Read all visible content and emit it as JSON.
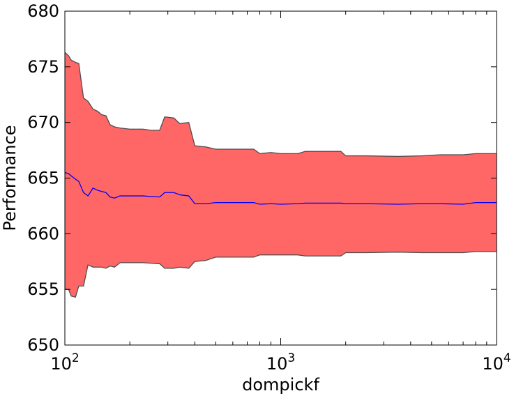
{
  "chart_data": {
    "type": "area",
    "title": "",
    "xlabel": "dompickf",
    "ylabel": "Performance",
    "x_scale": "log",
    "xlim": [
      100,
      10000
    ],
    "ylim": [
      650,
      680
    ],
    "grid": false,
    "legend": "none",
    "x_ticks": [
      {
        "value": 100,
        "base": "10",
        "exp": "2"
      },
      {
        "value": 1000,
        "base": "10",
        "exp": "3"
      },
      {
        "value": 10000,
        "base": "10",
        "exp": "4"
      }
    ],
    "y_ticks": [
      650,
      655,
      660,
      665,
      670,
      675,
      680
    ],
    "colors": {
      "band_fill": "#ff6666",
      "band_edge": "#4d4d4d",
      "mean_line": "#0000ff"
    },
    "series": [
      {
        "role": "upper",
        "points": [
          [
            100,
            676.3
          ],
          [
            104,
            676.0
          ],
          [
            107,
            675.6
          ],
          [
            112,
            675.4
          ],
          [
            116,
            675.3
          ],
          [
            122,
            672.2
          ],
          [
            128,
            671.9
          ],
          [
            135,
            671.2
          ],
          [
            142,
            671.0
          ],
          [
            148,
            670.7
          ],
          [
            155,
            670.6
          ],
          [
            162,
            669.8
          ],
          [
            170,
            669.6
          ],
          [
            180,
            669.5
          ],
          [
            200,
            669.4
          ],
          [
            230,
            669.4
          ],
          [
            250,
            669.3
          ],
          [
            275,
            669.3
          ],
          [
            290,
            670.5
          ],
          [
            320,
            670.4
          ],
          [
            340,
            669.9
          ],
          [
            375,
            670.0
          ],
          [
            400,
            667.9
          ],
          [
            450,
            667.8
          ],
          [
            500,
            667.6
          ],
          [
            600,
            667.6
          ],
          [
            750,
            667.6
          ],
          [
            800,
            667.2
          ],
          [
            900,
            667.3
          ],
          [
            1000,
            667.2
          ],
          [
            1200,
            667.2
          ],
          [
            1300,
            667.4
          ],
          [
            1900,
            667.4
          ],
          [
            2000,
            667.0
          ],
          [
            2500,
            667.0
          ],
          [
            3500,
            666.95
          ],
          [
            4500,
            667.0
          ],
          [
            5500,
            667.1
          ],
          [
            7000,
            667.1
          ],
          [
            8000,
            667.2
          ],
          [
            10000,
            667.2
          ]
        ]
      },
      {
        "role": "mean",
        "points": [
          [
            100,
            665.5
          ],
          [
            104,
            665.4
          ],
          [
            107,
            665.2
          ],
          [
            112,
            664.9
          ],
          [
            116,
            664.7
          ],
          [
            122,
            663.7
          ],
          [
            128,
            663.4
          ],
          [
            135,
            664.1
          ],
          [
            142,
            663.9
          ],
          [
            148,
            663.8
          ],
          [
            155,
            663.7
          ],
          [
            162,
            663.3
          ],
          [
            170,
            663.2
          ],
          [
            180,
            663.4
          ],
          [
            200,
            663.4
          ],
          [
            230,
            663.4
          ],
          [
            250,
            663.35
          ],
          [
            275,
            663.3
          ],
          [
            290,
            663.7
          ],
          [
            320,
            663.7
          ],
          [
            340,
            663.5
          ],
          [
            375,
            663.4
          ],
          [
            400,
            662.7
          ],
          [
            450,
            662.7
          ],
          [
            500,
            662.8
          ],
          [
            600,
            662.8
          ],
          [
            750,
            662.8
          ],
          [
            800,
            662.65
          ],
          [
            900,
            662.7
          ],
          [
            1000,
            662.65
          ],
          [
            1200,
            662.7
          ],
          [
            1300,
            662.75
          ],
          [
            1900,
            662.75
          ],
          [
            2000,
            662.7
          ],
          [
            2500,
            662.7
          ],
          [
            3500,
            662.65
          ],
          [
            4500,
            662.7
          ],
          [
            5500,
            662.7
          ],
          [
            7000,
            662.65
          ],
          [
            8000,
            662.8
          ],
          [
            10000,
            662.8
          ]
        ]
      },
      {
        "role": "lower",
        "points": [
          [
            100,
            655.0
          ],
          [
            104,
            655.0
          ],
          [
            107,
            654.4
          ],
          [
            112,
            654.3
          ],
          [
            116,
            655.3
          ],
          [
            122,
            655.3
          ],
          [
            128,
            657.2
          ],
          [
            135,
            657.0
          ],
          [
            142,
            657.0
          ],
          [
            148,
            657.0
          ],
          [
            155,
            656.9
          ],
          [
            162,
            657.1
          ],
          [
            170,
            657.0
          ],
          [
            180,
            657.4
          ],
          [
            200,
            657.4
          ],
          [
            230,
            657.4
          ],
          [
            250,
            657.35
          ],
          [
            275,
            657.3
          ],
          [
            290,
            656.9
          ],
          [
            320,
            656.9
          ],
          [
            340,
            657.0
          ],
          [
            375,
            656.9
          ],
          [
            400,
            657.5
          ],
          [
            450,
            657.6
          ],
          [
            500,
            657.9
          ],
          [
            600,
            657.9
          ],
          [
            750,
            657.9
          ],
          [
            800,
            658.1
          ],
          [
            900,
            658.1
          ],
          [
            1000,
            658.1
          ],
          [
            1200,
            658.1
          ],
          [
            1300,
            658.0
          ],
          [
            1900,
            658.0
          ],
          [
            2000,
            658.3
          ],
          [
            2500,
            658.3
          ],
          [
            3500,
            658.35
          ],
          [
            4500,
            658.3
          ],
          [
            5500,
            658.3
          ],
          [
            7000,
            658.3
          ],
          [
            8000,
            658.4
          ],
          [
            10000,
            658.4
          ]
        ]
      }
    ]
  }
}
